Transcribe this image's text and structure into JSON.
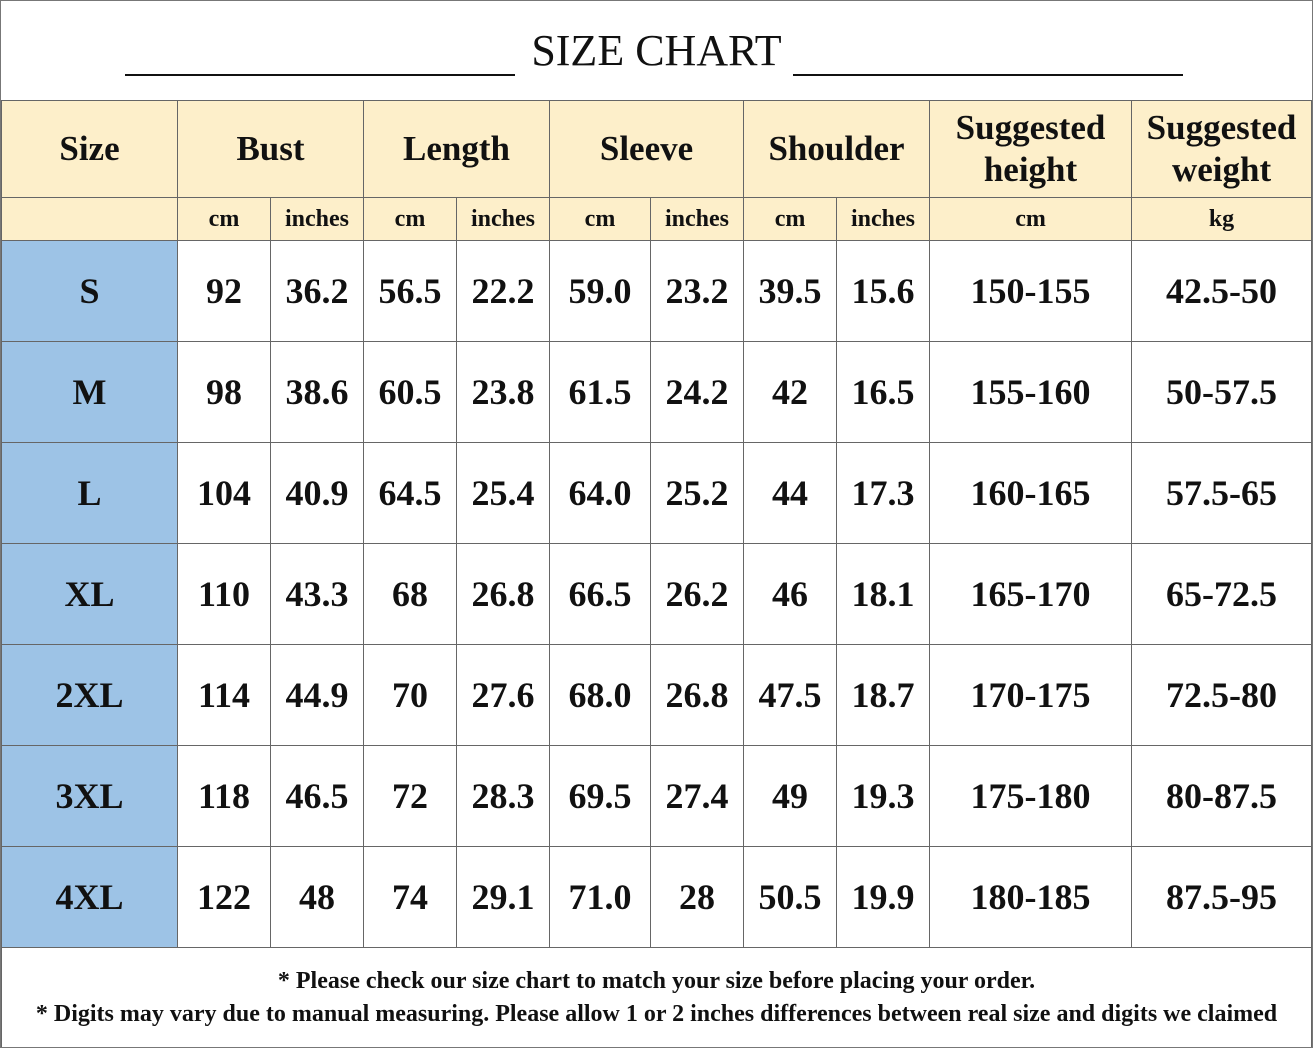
{
  "title": "SIZE CHART",
  "table": {
    "headers": [
      "Size",
      "Bust",
      "Length",
      "Sleeve",
      "Shoulder",
      "Suggested height",
      "Suggested weight"
    ],
    "units": [
      "cm",
      "inches",
      "cm",
      "inches",
      "cm",
      "inches",
      "cm",
      "inches",
      "cm",
      "kg"
    ],
    "rows": [
      [
        "S",
        "92",
        "36.2",
        "56.5",
        "22.2",
        "59.0",
        "23.2",
        "39.5",
        "15.6",
        "150-155",
        "42.5-50"
      ],
      [
        "M",
        "98",
        "38.6",
        "60.5",
        "23.8",
        "61.5",
        "24.2",
        "42",
        "16.5",
        "155-160",
        "50-57.5"
      ],
      [
        "L",
        "104",
        "40.9",
        "64.5",
        "25.4",
        "64.0",
        "25.2",
        "44",
        "17.3",
        "160-165",
        "57.5-65"
      ],
      [
        "XL",
        "110",
        "43.3",
        "68",
        "26.8",
        "66.5",
        "26.2",
        "46",
        "18.1",
        "165-170",
        "65-72.5"
      ],
      [
        "2XL",
        "114",
        "44.9",
        "70",
        "27.6",
        "68.0",
        "26.8",
        "47.5",
        "18.7",
        "170-175",
        "72.5-80"
      ],
      [
        "3XL",
        "118",
        "46.5",
        "72",
        "28.3",
        "69.5",
        "27.4",
        "49",
        "19.3",
        "175-180",
        "80-87.5"
      ],
      [
        "4XL",
        "122",
        "48",
        "74",
        "29.1",
        "71.0",
        "28",
        "50.5",
        "19.9",
        "180-185",
        "87.5-95"
      ]
    ]
  },
  "notes": [
    "* Please check our size chart to match your size before placing your order.",
    "* Digits may vary due to manual measuring. Please allow 1 or 2 inches differences between real size and digits we claimed"
  ]
}
